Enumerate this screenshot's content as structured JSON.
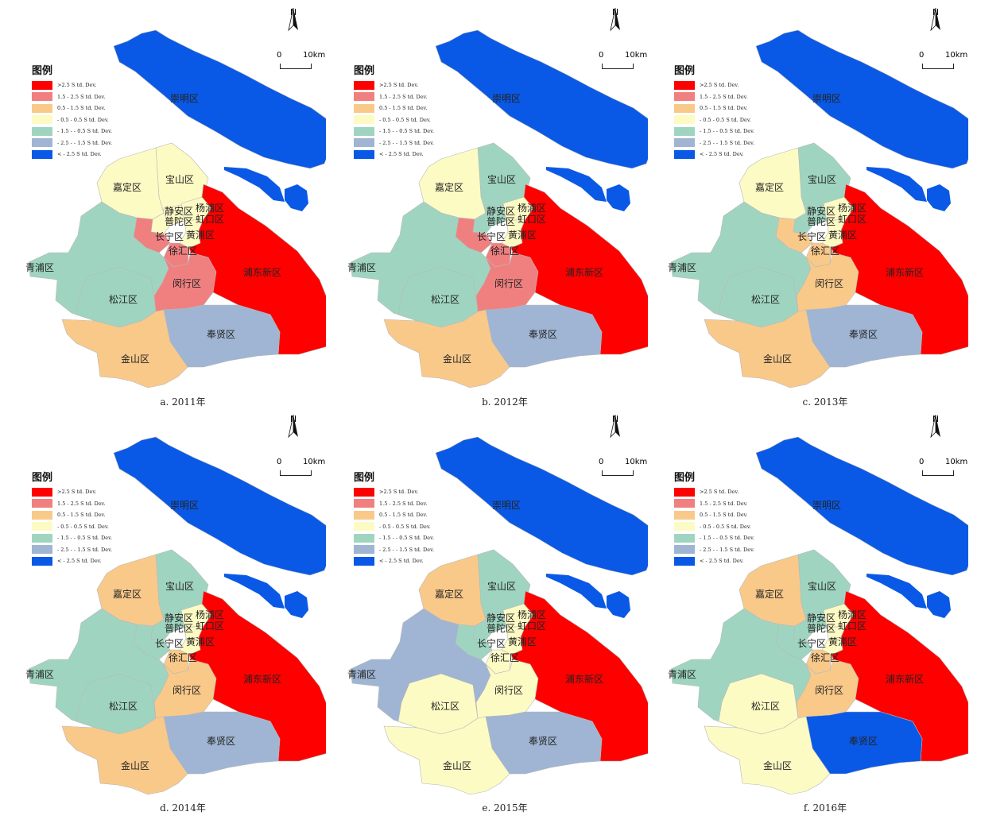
{
  "legend": {
    "title": "图例",
    "items": [
      {
        "label": ">2.5 S td. Dev.",
        "color": "#ff0000"
      },
      {
        "label": "1.5 - 2.5 S td. Dev.",
        "color": "#f08080"
      },
      {
        "label": "0.5 - 1.5 S td. Dev.",
        "color": "#f9c98a"
      },
      {
        "label": "- 0.5 - 0.5 S td. Dev.",
        "color": "#fdfbc4"
      },
      {
        "label": "- 1.5 - - 0.5 S td. Dev.",
        "color": "#9fd5c0"
      },
      {
        "label": "- 2.5 - - 1.5 S td. Dev.",
        "color": "#9fb5d3"
      },
      {
        "label": "< - 2.5 S td. Dev.",
        "color": "#0a59e6"
      }
    ]
  },
  "north_label": "N",
  "scale": {
    "start": "0",
    "end": "10km"
  },
  "district_names": {
    "chongming": "崇明区",
    "baoshan": "宝山区",
    "jiading": "嘉定区",
    "jingan": "静安区",
    "yangpu": "杨浦区",
    "putuo": "普陀区",
    "hongkou": "虹口区",
    "changning": "长宁区",
    "huangpu": "黄浦区",
    "xuhui": "徐汇区",
    "qingpu": "青浦区",
    "minhang": "闵行区",
    "pudong": "浦东新区",
    "songjiang": "松江区",
    "fengxian": "奉贤区",
    "jinshan": "金山区"
  },
  "maps": [
    {
      "caption": "a. 2011年",
      "classes": {
        "chongming": 7,
        "baoshan": 4,
        "jiading": 4,
        "jingan": 4,
        "yangpu": 4,
        "putuo": 4,
        "hongkou": 4,
        "changning": 2,
        "huangpu": 4,
        "xuhui": 2,
        "qingpu": 5,
        "minhang": 2,
        "pudong": 1,
        "songjiang": 5,
        "fengxian": 6,
        "jinshan": 3
      }
    },
    {
      "caption": "b. 2012年",
      "classes": {
        "chongming": 7,
        "baoshan": 5,
        "jiading": 4,
        "jingan": 5,
        "yangpu": 4,
        "putuo": 5,
        "hongkou": 4,
        "changning": 2,
        "huangpu": 4,
        "xuhui": 2,
        "qingpu": 5,
        "minhang": 2,
        "pudong": 1,
        "songjiang": 5,
        "fengxian": 6,
        "jinshan": 3
      }
    },
    {
      "caption": "c. 2013年",
      "classes": {
        "chongming": 7,
        "baoshan": 5,
        "jiading": 4,
        "jingan": 5,
        "yangpu": 4,
        "putuo": 5,
        "hongkou": 4,
        "changning": 3,
        "huangpu": 4,
        "xuhui": 3,
        "qingpu": 5,
        "minhang": 3,
        "pudong": 1,
        "songjiang": 5,
        "fengxian": 6,
        "jinshan": 3
      }
    },
    {
      "caption": "d. 2014年",
      "classes": {
        "chongming": 7,
        "baoshan": 5,
        "jiading": 3,
        "jingan": 5,
        "yangpu": 4,
        "putuo": 5,
        "hongkou": 4,
        "changning": 5,
        "huangpu": 4,
        "xuhui": 3,
        "qingpu": 5,
        "minhang": 3,
        "pudong": 1,
        "songjiang": 5,
        "fengxian": 6,
        "jinshan": 3
      }
    },
    {
      "caption": "e. 2015年",
      "classes": {
        "chongming": 7,
        "baoshan": 5,
        "jiading": 3,
        "jingan": 5,
        "yangpu": 4,
        "putuo": 5,
        "hongkou": 4,
        "changning": 5,
        "huangpu": 4,
        "xuhui": 4,
        "qingpu": 6,
        "minhang": 4,
        "pudong": 1,
        "songjiang": 4,
        "fengxian": 6,
        "jinshan": 4
      }
    },
    {
      "caption": "f. 2016年",
      "classes": {
        "chongming": 7,
        "baoshan": 5,
        "jiading": 3,
        "jingan": 5,
        "yangpu": 4,
        "putuo": 5,
        "hongkou": 4,
        "changning": 5,
        "huangpu": 4,
        "xuhui": 3,
        "qingpu": 5,
        "minhang": 3,
        "pudong": 1,
        "songjiang": 4,
        "fengxian": 7,
        "jinshan": 4
      }
    }
  ]
}
